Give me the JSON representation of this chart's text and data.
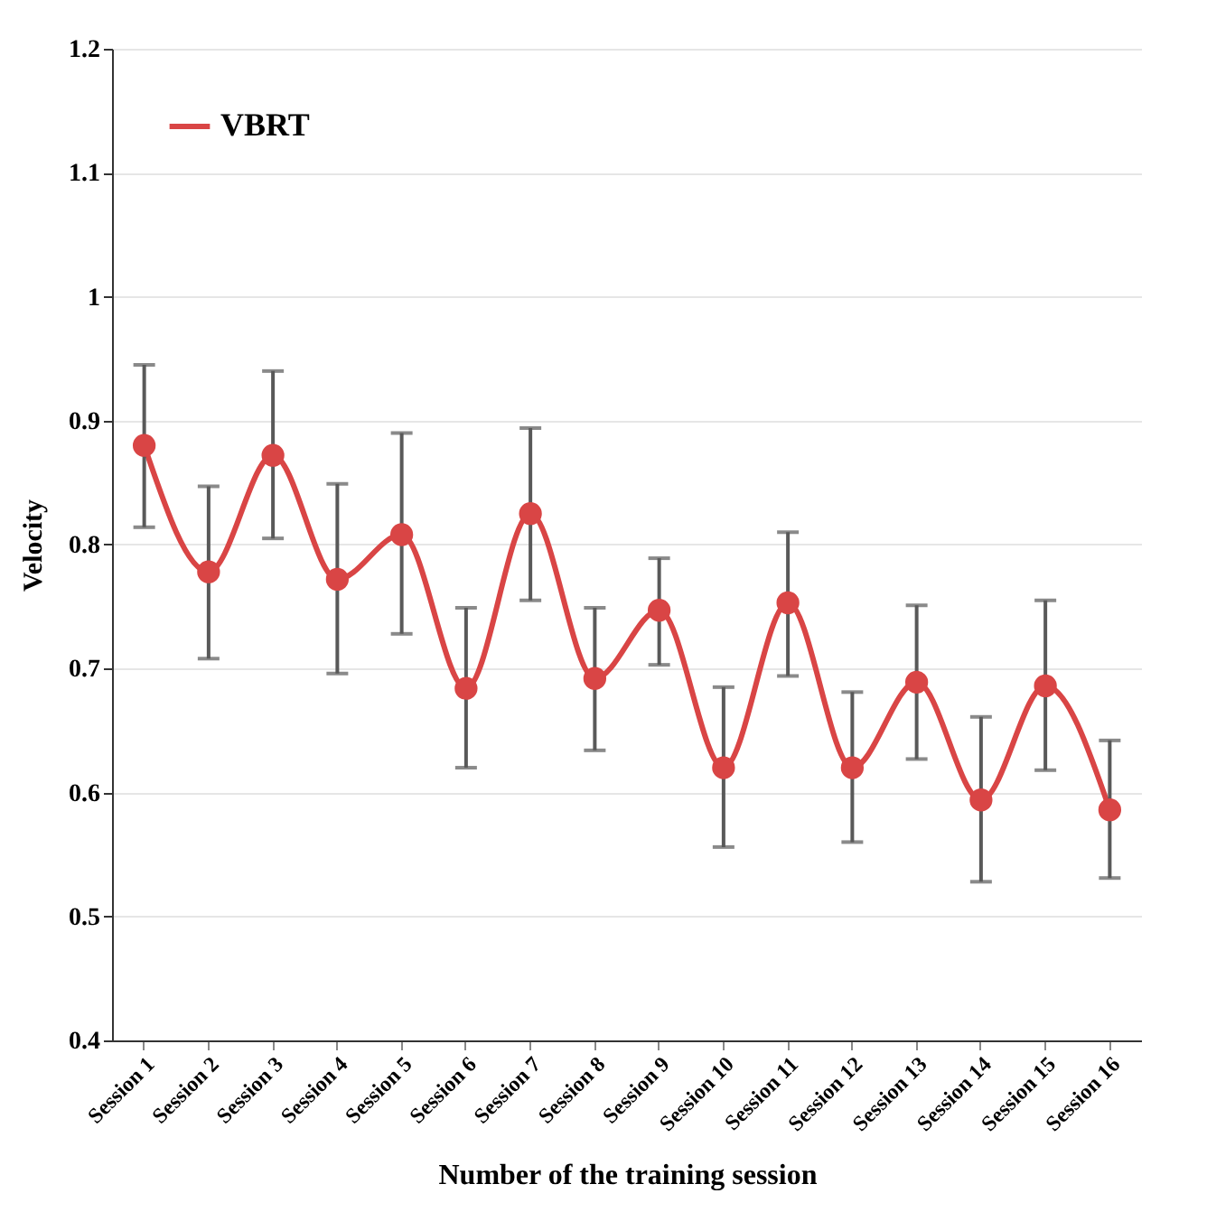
{
  "chart_data": {
    "type": "line",
    "xlabel": "Number of the training session",
    "ylabel": "Velocity",
    "categories": [
      "Session 1",
      "Session 2",
      "Session 3",
      "Session 4",
      "Session 5",
      "Session 6",
      "Session 7",
      "Session 8",
      "Session 9",
      "Session 10",
      "Session 11",
      "Session 12",
      "Session 13",
      "Session 14",
      "Session 15",
      "Session 16"
    ],
    "series": [
      {
        "name": "VBRT",
        "color": "#d94545",
        "values": [
          0.88,
          0.778,
          0.872,
          0.772,
          0.808,
          0.684,
          0.825,
          0.692,
          0.747,
          0.62,
          0.753,
          0.62,
          0.689,
          0.594,
          0.686,
          0.586
        ],
        "errors": [
          [
            0.814,
            0.945
          ],
          [
            0.708,
            0.847
          ],
          [
            0.805,
            0.94
          ],
          [
            0.696,
            0.849
          ],
          [
            0.728,
            0.89
          ],
          [
            0.62,
            0.749
          ],
          [
            0.755,
            0.894
          ],
          [
            0.634,
            0.749
          ],
          [
            0.703,
            0.789
          ],
          [
            0.556,
            0.685
          ],
          [
            0.694,
            0.81
          ],
          [
            0.56,
            0.681
          ],
          [
            0.627,
            0.751
          ],
          [
            0.528,
            0.661
          ],
          [
            0.618,
            0.755
          ],
          [
            0.531,
            0.642
          ]
        ]
      }
    ],
    "ylim": [
      0.4,
      1.2
    ],
    "yticks": [
      0.4,
      0.5,
      0.6,
      0.7,
      0.8,
      0.9,
      1,
      1.1,
      1.2
    ],
    "grid": "y",
    "legend": "top left",
    "marker": "circle",
    "line_style": "solid"
  }
}
